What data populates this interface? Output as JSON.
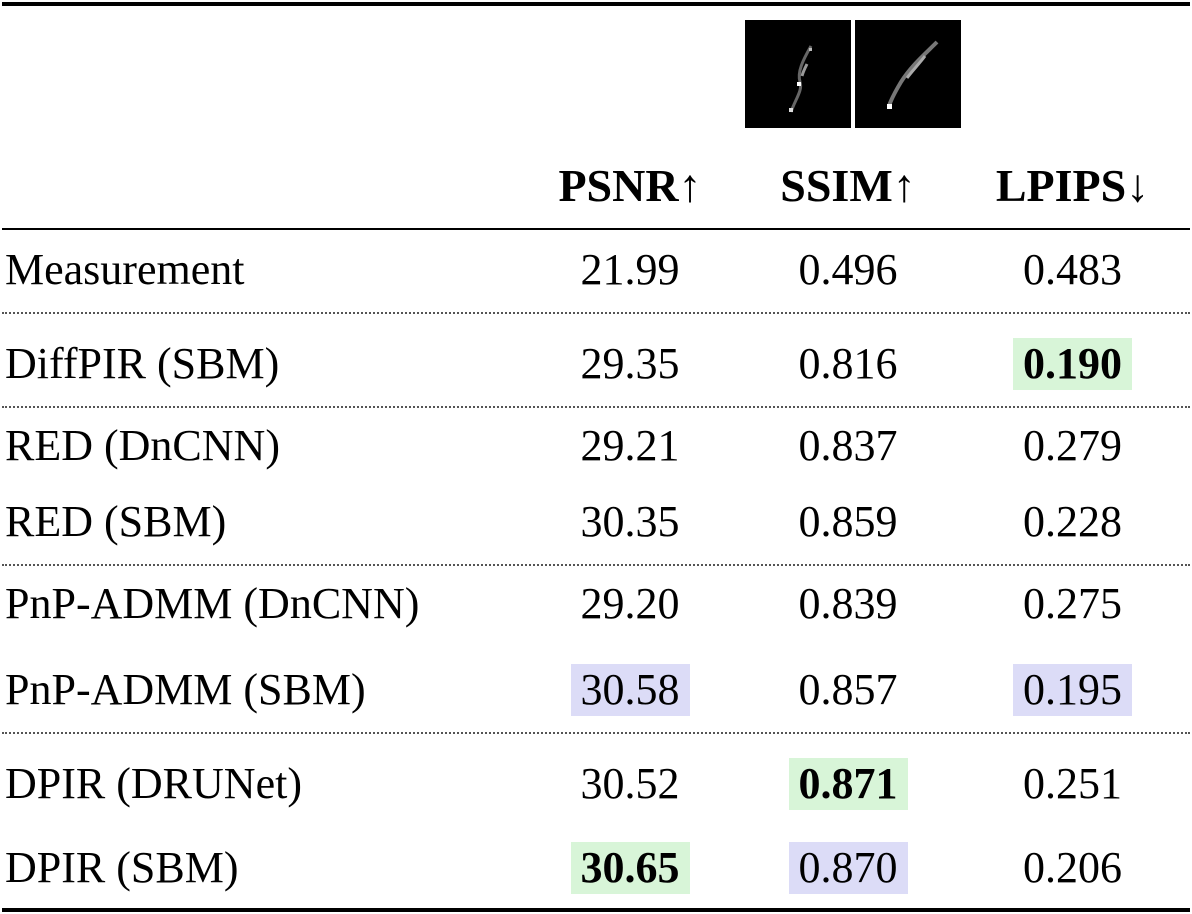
{
  "table": {
    "headers": [
      "PSNR↑",
      "SSIM↑",
      "LPIPS↓"
    ],
    "kernel_images": [
      "blur-kernel-1",
      "blur-kernel-2"
    ],
    "rows": [
      {
        "method": "Measurement",
        "psnr": "21.99",
        "ssim": "0.496",
        "lpips": "0.483",
        "hl": [
          "",
          "",
          ""
        ]
      },
      {
        "method": "DiffPIR (SBM)",
        "psnr": "29.35",
        "ssim": "0.816",
        "lpips": "0.190",
        "hl": [
          "",
          "",
          "best"
        ]
      },
      {
        "method": "RED (DnCNN)",
        "psnr": "29.21",
        "ssim": "0.837",
        "lpips": "0.279",
        "hl": [
          "",
          "",
          ""
        ]
      },
      {
        "method": "RED (SBM)",
        "psnr": "30.35",
        "ssim": "0.859",
        "lpips": "0.228",
        "hl": [
          "",
          "",
          ""
        ]
      },
      {
        "method": "PnP-ADMM (DnCNN)",
        "psnr": "29.20",
        "ssim": "0.839",
        "lpips": "0.275",
        "hl": [
          "",
          "",
          ""
        ]
      },
      {
        "method": "PnP-ADMM (SBM)",
        "psnr": "30.58",
        "ssim": "0.857",
        "lpips": "0.195",
        "hl": [
          "second",
          "",
          "second"
        ]
      },
      {
        "method": "DPIR (DRUNet)",
        "psnr": "30.52",
        "ssim": "0.871",
        "lpips": "0.251",
        "hl": [
          "",
          "best",
          ""
        ]
      },
      {
        "method": "DPIR (SBM)",
        "psnr": "30.65",
        "ssim": "0.870",
        "lpips": "0.206",
        "hl": [
          "best",
          "second",
          ""
        ]
      }
    ],
    "colors": {
      "best": "#d8f5d8",
      "second": "#dcdcf7"
    }
  }
}
